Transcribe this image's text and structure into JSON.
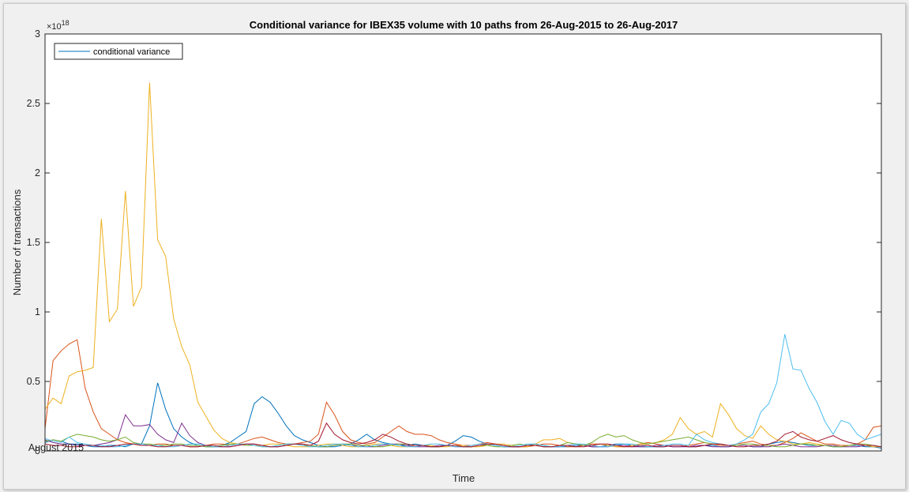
{
  "chart_data": {
    "type": "line",
    "title": "Conditional variance for IBEX35 volume with 10 paths from 26-Aug-2015 to 26-Aug-2017",
    "xlabel": "Time",
    "ylabel": "Number of transactions",
    "y_exponent_base": "×10",
    "y_exponent_power": "18",
    "ylim": [
      0,
      3
    ],
    "yticks": [
      0,
      0.5,
      1,
      1.5,
      2,
      2.5,
      3
    ],
    "ytick_labels": [
      "0",
      "0.5",
      "1",
      "1.5",
      "2",
      "2.5",
      "3"
    ],
    "xlim": [
      0,
      104
    ],
    "xtick_labels": [
      {
        "x": 0,
        "label": "August 2015"
      }
    ],
    "grid": false,
    "legend": {
      "placement": "top-left",
      "entries": [
        "conditional variance"
      ]
    },
    "series": [
      {
        "color": "#0072BD",
        "values": [
          0.06,
          0.08,
          0.07,
          0.05,
          0.05,
          0.04,
          0.03,
          0.03,
          0.04,
          0.04,
          0.03,
          0.05,
          0.05,
          0.18,
          0.49,
          0.3,
          0.16,
          0.1,
          0.06,
          0.04,
          0.03,
          0.03,
          0.04,
          0.06,
          0.1,
          0.14,
          0.34,
          0.39,
          0.35,
          0.27,
          0.18,
          0.11,
          0.08,
          0.06,
          0.04,
          0.03,
          0.03,
          0.04,
          0.05,
          0.08,
          0.12,
          0.08,
          0.06,
          0.05,
          0.04,
          0.04,
          0.05,
          0.04,
          0.03,
          0.03,
          0.04,
          0.07,
          0.11,
          0.1,
          0.07,
          0.05,
          0.04,
          0.03,
          0.03,
          0.03,
          0.04,
          0.05,
          0.04,
          0.03,
          0.03,
          0.03,
          0.04,
          0.04,
          0.03,
          0.03,
          0.04,
          0.05,
          0.05,
          0.04,
          0.03,
          0.03,
          0.03,
          0.03,
          0.04,
          0.04,
          0.03,
          0.03,
          0.04,
          0.04,
          0.03,
          0.03,
          0.04,
          0.04,
          0.03,
          0.03,
          0.05,
          0.06,
          0.07,
          0.06,
          0.05,
          0.04,
          0.04,
          0.04,
          0.03,
          0.03,
          0.04,
          0.04,
          0.03,
          0.03,
          0.02
        ]
      },
      {
        "color": "#D95319",
        "values": [
          0.16,
          0.65,
          0.72,
          0.77,
          0.8,
          0.45,
          0.28,
          0.16,
          0.12,
          0.08,
          0.06,
          0.05,
          0.04,
          0.04,
          0.05,
          0.05,
          0.04,
          0.04,
          0.03,
          0.03,
          0.04,
          0.05,
          0.05,
          0.04,
          0.05,
          0.07,
          0.09,
          0.1,
          0.08,
          0.06,
          0.05,
          0.05,
          0.06,
          0.07,
          0.12,
          0.35,
          0.26,
          0.14,
          0.08,
          0.06,
          0.05,
          0.06,
          0.1,
          0.14,
          0.18,
          0.14,
          0.12,
          0.12,
          0.11,
          0.08,
          0.06,
          0.05,
          0.04,
          0.04,
          0.05,
          0.06,
          0.05,
          0.04,
          0.03,
          0.03,
          0.03,
          0.04,
          0.05,
          0.05,
          0.04,
          0.03,
          0.03,
          0.04,
          0.05,
          0.05,
          0.04,
          0.03,
          0.03,
          0.04,
          0.05,
          0.06,
          0.05,
          0.04,
          0.03,
          0.03,
          0.04,
          0.05,
          0.06,
          0.05,
          0.04,
          0.04,
          0.05,
          0.06,
          0.07,
          0.05,
          0.04,
          0.04,
          0.06,
          0.09,
          0.13,
          0.1,
          0.07,
          0.05,
          0.05,
          0.04,
          0.04,
          0.05,
          0.08,
          0.17,
          0.18
        ]
      },
      {
        "color": "#EDB120",
        "values": [
          0.3,
          0.38,
          0.34,
          0.54,
          0.57,
          0.58,
          0.6,
          1.67,
          0.93,
          1.02,
          1.87,
          1.04,
          1.18,
          2.65,
          1.52,
          1.4,
          0.95,
          0.75,
          0.62,
          0.35,
          0.25,
          0.15,
          0.09,
          0.06,
          0.05,
          0.04,
          0.04,
          0.04,
          0.05,
          0.05,
          0.04,
          0.03,
          0.03,
          0.03,
          0.04,
          0.05,
          0.05,
          0.04,
          0.03,
          0.03,
          0.04,
          0.05,
          0.05,
          0.04,
          0.03,
          0.03,
          0.04,
          0.04,
          0.04,
          0.03,
          0.03,
          0.04,
          0.04,
          0.03,
          0.03,
          0.04,
          0.05,
          0.05,
          0.04,
          0.03,
          0.03,
          0.05,
          0.08,
          0.08,
          0.09,
          0.06,
          0.05,
          0.04,
          0.04,
          0.05,
          0.04,
          0.03,
          0.03,
          0.04,
          0.05,
          0.05,
          0.06,
          0.08,
          0.12,
          0.24,
          0.16,
          0.12,
          0.14,
          0.1,
          0.34,
          0.26,
          0.16,
          0.11,
          0.09,
          0.18,
          0.12,
          0.08,
          0.07,
          0.05,
          0.05,
          0.06,
          0.05,
          0.04,
          0.04,
          0.03,
          0.04,
          0.05,
          0.04,
          0.03,
          0.03
        ]
      },
      {
        "color": "#7E2F8E",
        "values": [
          0.08,
          0.06,
          0.05,
          0.05,
          0.04,
          0.04,
          0.04,
          0.05,
          0.06,
          0.08,
          0.26,
          0.18,
          0.18,
          0.19,
          0.12,
          0.08,
          0.06,
          0.2,
          0.11,
          0.06,
          0.04,
          0.03,
          0.03,
          0.03,
          0.04,
          0.05,
          0.05,
          0.04,
          0.03,
          0.03,
          0.04,
          0.05,
          0.05,
          0.04,
          0.03,
          0.03,
          0.04,
          0.05,
          0.04,
          0.04,
          0.03,
          0.03,
          0.04,
          0.05,
          0.05,
          0.04,
          0.03,
          0.03,
          0.03,
          0.04,
          0.04,
          0.03,
          0.03,
          0.03,
          0.04,
          0.05,
          0.04,
          0.03,
          0.03,
          0.03,
          0.04,
          0.04,
          0.03,
          0.03,
          0.03,
          0.04,
          0.05,
          0.04,
          0.03,
          0.03,
          0.03,
          0.04,
          0.04,
          0.03,
          0.03,
          0.03,
          0.04,
          0.04,
          0.03,
          0.03,
          0.03,
          0.04,
          0.04,
          0.03,
          0.03,
          0.03,
          0.04,
          0.04,
          0.03,
          0.03,
          0.03,
          0.04,
          0.05,
          0.04,
          0.03,
          0.03,
          0.03,
          0.04,
          0.04,
          0.03,
          0.03,
          0.03,
          0.04,
          0.04,
          0.03
        ]
      },
      {
        "color": "#77AC30",
        "values": [
          0.07,
          0.08,
          0.07,
          0.1,
          0.12,
          0.11,
          0.1,
          0.08,
          0.07,
          0.08,
          0.1,
          0.06,
          0.05,
          0.05,
          0.04,
          0.04,
          0.05,
          0.05,
          0.04,
          0.04,
          0.03,
          0.03,
          0.04,
          0.05,
          0.05,
          0.04,
          0.04,
          0.03,
          0.03,
          0.04,
          0.05,
          0.05,
          0.04,
          0.04,
          0.03,
          0.03,
          0.04,
          0.05,
          0.05,
          0.04,
          0.04,
          0.03,
          0.03,
          0.04,
          0.05,
          0.05,
          0.04,
          0.04,
          0.03,
          0.03,
          0.04,
          0.04,
          0.03,
          0.03,
          0.04,
          0.04,
          0.03,
          0.03,
          0.04,
          0.05,
          0.04,
          0.04,
          0.03,
          0.03,
          0.04,
          0.06,
          0.05,
          0.04,
          0.06,
          0.1,
          0.12,
          0.1,
          0.11,
          0.08,
          0.06,
          0.05,
          0.06,
          0.07,
          0.08,
          0.09,
          0.1,
          0.08,
          0.06,
          0.05,
          0.05,
          0.04,
          0.04,
          0.05,
          0.05,
          0.04,
          0.04,
          0.03,
          0.03,
          0.04,
          0.05,
          0.05,
          0.04,
          0.04,
          0.03,
          0.03,
          0.04,
          0.05,
          0.05,
          0.04,
          0.03
        ]
      },
      {
        "color": "#4DBEEE",
        "values": [
          0.09,
          0.07,
          0.06,
          0.1,
          0.06,
          0.05,
          0.04,
          0.04,
          0.03,
          0.03,
          0.04,
          0.05,
          0.05,
          0.04,
          0.04,
          0.03,
          0.03,
          0.04,
          0.05,
          0.05,
          0.04,
          0.03,
          0.03,
          0.04,
          0.05,
          0.05,
          0.04,
          0.03,
          0.03,
          0.04,
          0.05,
          0.05,
          0.04,
          0.03,
          0.03,
          0.04,
          0.05,
          0.05,
          0.04,
          0.03,
          0.03,
          0.04,
          0.05,
          0.05,
          0.04,
          0.03,
          0.03,
          0.04,
          0.05,
          0.05,
          0.04,
          0.03,
          0.03,
          0.04,
          0.05,
          0.05,
          0.04,
          0.03,
          0.03,
          0.04,
          0.05,
          0.05,
          0.04,
          0.03,
          0.03,
          0.04,
          0.05,
          0.05,
          0.04,
          0.03,
          0.03,
          0.04,
          0.05,
          0.05,
          0.04,
          0.03,
          0.03,
          0.04,
          0.05,
          0.05,
          0.04,
          0.12,
          0.08,
          0.06,
          0.05,
          0.04,
          0.05,
          0.08,
          0.12,
          0.28,
          0.34,
          0.49,
          0.84,
          0.59,
          0.58,
          0.45,
          0.35,
          0.21,
          0.12,
          0.22,
          0.2,
          0.12,
          0.08,
          0.1,
          0.12
        ]
      },
      {
        "color": "#A2142F",
        "values": [
          0.05,
          0.04,
          0.04,
          0.03,
          0.03,
          0.04,
          0.04,
          0.03,
          0.03,
          0.04,
          0.05,
          0.05,
          0.04,
          0.04,
          0.03,
          0.03,
          0.04,
          0.04,
          0.03,
          0.03,
          0.04,
          0.04,
          0.03,
          0.03,
          0.04,
          0.05,
          0.05,
          0.04,
          0.03,
          0.03,
          0.04,
          0.05,
          0.05,
          0.04,
          0.07,
          0.2,
          0.12,
          0.08,
          0.06,
          0.05,
          0.06,
          0.08,
          0.12,
          0.1,
          0.07,
          0.05,
          0.04,
          0.04,
          0.03,
          0.03,
          0.04,
          0.04,
          0.03,
          0.03,
          0.04,
          0.05,
          0.05,
          0.04,
          0.03,
          0.03,
          0.04,
          0.04,
          0.03,
          0.03,
          0.04,
          0.04,
          0.03,
          0.03,
          0.04,
          0.05,
          0.05,
          0.04,
          0.03,
          0.03,
          0.04,
          0.04,
          0.03,
          0.03,
          0.04,
          0.04,
          0.03,
          0.03,
          0.04,
          0.05,
          0.05,
          0.04,
          0.03,
          0.03,
          0.04,
          0.04,
          0.05,
          0.07,
          0.12,
          0.14,
          0.1,
          0.08,
          0.07,
          0.09,
          0.11,
          0.08,
          0.06,
          0.05,
          0.04,
          0.04,
          0.03
        ]
      }
    ]
  }
}
